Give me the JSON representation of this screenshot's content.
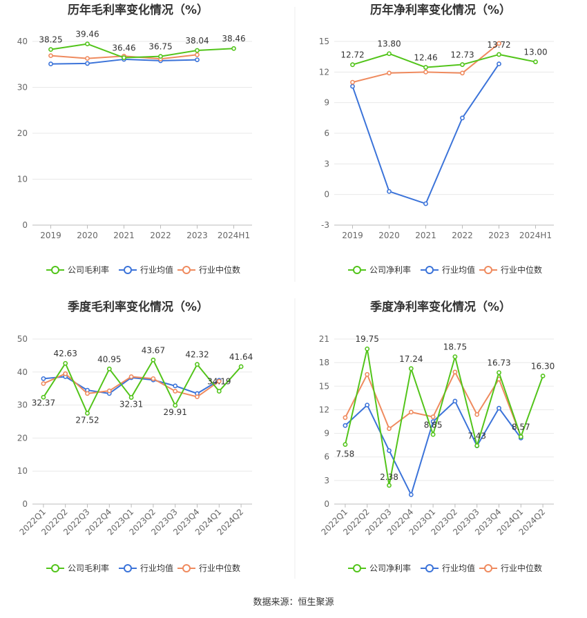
{
  "footer": {
    "source": "数据来源：恒生聚源"
  },
  "chart_data": [
    {
      "id": "c1",
      "type": "line",
      "title": "历年毛利率变化情况（%）",
      "categories": [
        "2019",
        "2020",
        "2021",
        "2022",
        "2023",
        "2024H1"
      ],
      "ylim": [
        0,
        40
      ],
      "yticks": [
        0,
        10,
        20,
        30,
        40
      ],
      "series": [
        {
          "name": "公司毛利率",
          "color": "#52c41a",
          "values": [
            38.25,
            39.46,
            36.46,
            36.75,
            38.04,
            38.46
          ],
          "labels": [
            "38.25",
            "39.46",
            "36.46",
            "36.75",
            "38.04",
            "38.46"
          ]
        },
        {
          "name": "行业均值",
          "color": "#3b73d9",
          "values": [
            35.1,
            35.2,
            36.1,
            35.8,
            36.0,
            null
          ]
        },
        {
          "name": "行业中位数",
          "color": "#ef8a5e",
          "values": [
            36.9,
            36.3,
            36.8,
            36.2,
            37.1,
            null
          ]
        }
      ]
    },
    {
      "id": "c2",
      "type": "line",
      "title": "历年净利率变化情况（%）",
      "categories": [
        "2019",
        "2020",
        "2021",
        "2022",
        "2023",
        "2024H1"
      ],
      "ylim": [
        -3,
        15
      ],
      "yticks": [
        -3,
        0,
        3,
        6,
        9,
        12,
        15
      ],
      "series": [
        {
          "name": "公司净利率",
          "color": "#52c41a",
          "values": [
            12.72,
            13.8,
            12.46,
            12.73,
            13.72,
            13.0
          ],
          "labels": [
            "12.72",
            "13.80",
            "12.46",
            "12.73",
            "13.72",
            "13.00"
          ]
        },
        {
          "name": "行业均值",
          "color": "#3b73d9",
          "values": [
            10.6,
            0.3,
            -0.9,
            7.5,
            12.8,
            null
          ]
        },
        {
          "name": "行业中位数",
          "color": "#ef8a5e",
          "values": [
            11.0,
            11.9,
            12.0,
            11.9,
            14.8,
            null
          ]
        }
      ]
    },
    {
      "id": "c3",
      "type": "line",
      "title": "季度毛利率变化情况（%）",
      "categories": [
        "2022Q1",
        "2022Q2",
        "2022Q3",
        "2022Q4",
        "2023Q1",
        "2023Q2",
        "2023Q3",
        "2023Q4",
        "2024Q1",
        "2024Q2"
      ],
      "ylim": [
        0,
        50
      ],
      "yticks": [
        0,
        10,
        20,
        30,
        40,
        50
      ],
      "series": [
        {
          "name": "公司毛利率",
          "color": "#52c41a",
          "values": [
            32.37,
            42.63,
            27.52,
            40.95,
            32.31,
            43.67,
            29.91,
            42.32,
            34.19,
            41.64
          ],
          "labels": [
            "32.37",
            "42.63",
            "27.52",
            "40.95",
            "32.31",
            "43.67",
            "29.91",
            "42.32",
            "34.19",
            "41.64"
          ]
        },
        {
          "name": "行业均值",
          "color": "#3b73d9",
          "values": [
            38.0,
            38.6,
            34.5,
            33.5,
            38.3,
            37.6,
            35.8,
            33.5,
            37.5,
            null
          ]
        },
        {
          "name": "行业中位数",
          "color": "#ef8a5e",
          "values": [
            36.5,
            39.5,
            33.5,
            34.3,
            38.6,
            38.0,
            34.2,
            32.5,
            37.2,
            null
          ]
        }
      ]
    },
    {
      "id": "c4",
      "type": "line",
      "title": "季度净利率变化情况（%）",
      "categories": [
        "2022Q1",
        "2022Q2",
        "2022Q3",
        "2022Q4",
        "2023Q1",
        "2023Q2",
        "2023Q3",
        "2023Q4",
        "2024Q1",
        "2024Q2"
      ],
      "ylim": [
        0,
        21
      ],
      "yticks": [
        0,
        3,
        6,
        9,
        12,
        15,
        18,
        21
      ],
      "series": [
        {
          "name": "公司净利率",
          "color": "#52c41a",
          "values": [
            7.58,
            19.75,
            2.38,
            17.24,
            8.85,
            18.75,
            7.43,
            16.73,
            8.57,
            16.3
          ],
          "labels": [
            "7.58",
            "19.75",
            "2.38",
            "17.24",
            "8.85",
            "18.75",
            "7.43",
            "16.73",
            "8.57",
            "16.30"
          ]
        },
        {
          "name": "行业均值",
          "color": "#3b73d9",
          "values": [
            10.0,
            12.6,
            6.8,
            1.2,
            10.5,
            13.1,
            7.4,
            12.2,
            8.4,
            null
          ]
        },
        {
          "name": "行业中位数",
          "color": "#ef8a5e",
          "values": [
            11.0,
            16.5,
            9.6,
            11.7,
            11.1,
            16.8,
            11.4,
            15.9,
            8.6,
            null
          ]
        }
      ]
    }
  ]
}
